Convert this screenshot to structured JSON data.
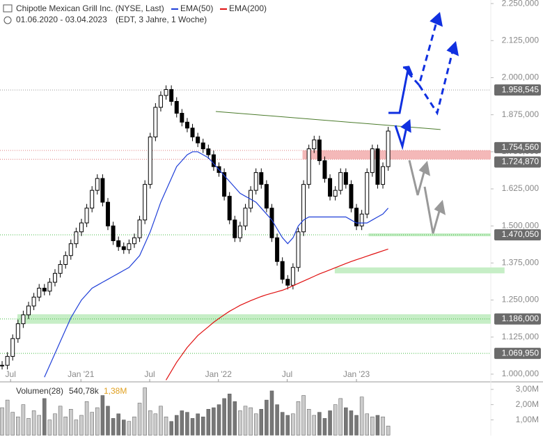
{
  "chart_data": {
    "type": "candlestick",
    "title": "Chipotle Mexican Grill Inc. (NYSE, Last)",
    "subtitle": "01.06.2020 - 03.04.2023",
    "subtitle_note": "(EDT, 3 Jahre, 1 Woche)",
    "xlim": [
      -0.4,
      92.4
    ],
    "ylim": [
      974,
      2262
    ],
    "xticks": [
      {
        "value": 1.6,
        "label": "Jul"
      },
      {
        "value": 14.9,
        "label": "Jan '21"
      },
      {
        "value": 27.9,
        "label": "Jul"
      },
      {
        "value": 40.9,
        "label": "Jan '22"
      },
      {
        "value": 53.9,
        "label": "Jul"
      },
      {
        "value": 67,
        "label": "Jan '23"
      }
    ],
    "yticks": [
      {
        "value": 1000,
        "label": "1.000,000"
      },
      {
        "value": 1125,
        "label": "1.125,000"
      },
      {
        "value": 1250,
        "label": "1.250,000"
      },
      {
        "value": 1375,
        "label": "1.375,000"
      },
      {
        "value": 1500,
        "label": "1.500,000"
      },
      {
        "value": 1625,
        "label": "1.625,000"
      },
      {
        "value": 1750,
        "label": "1.750,000"
      },
      {
        "value": 1875,
        "label": "1.875,000"
      },
      {
        "value": 2000,
        "label": "2.000,000"
      },
      {
        "value": 2125,
        "label": "2.125,000"
      },
      {
        "value": 2250,
        "label": "2.250,000"
      }
    ],
    "values": [
      1030,
      1060,
      1120,
      1170,
      1200,
      1230,
      1260,
      1290,
      1280,
      1310,
      1340,
      1370,
      1400,
      1440,
      1480,
      1510,
      1560,
      1620,
      1660,
      1580,
      1500,
      1450,
      1430,
      1420,
      1440,
      1460,
      1520,
      1640,
      1800,
      1900,
      1940,
      1960,
      1920,
      1880,
      1850,
      1830,
      1800,
      1780,
      1760,
      1740,
      1700,
      1680,
      1600,
      1520,
      1460,
      1500,
      1560,
      1620,
      1680,
      1640,
      1560,
      1460,
      1380,
      1320,
      1300,
      1360,
      1480,
      1640,
      1760,
      1790,
      1720,
      1660,
      1600,
      1620,
      1680,
      1640,
      1560,
      1500,
      1540,
      1680,
      1760,
      1640,
      1700,
      1820
    ],
    "series": [
      {
        "name": "EMA(50)",
        "color": "#1f3fd8",
        "values": [
          null,
          null,
          null,
          null,
          null,
          null,
          null,
          null,
          990,
          1030,
          1070,
          1110,
          1150,
          1190,
          1220,
          1250,
          1270,
          1290,
          1300,
          1310,
          1320,
          1330,
          1340,
          1350,
          1360,
          1380,
          1400,
          1440,
          1480,
          1530,
          1580,
          1620,
          1660,
          1700,
          1720,
          1740,
          1750,
          1750,
          1740,
          1730,
          1710,
          1690,
          1670,
          1650,
          1630,
          1610,
          1600,
          1590,
          1580,
          1560,
          1540,
          1520,
          1490,
          1460,
          1440,
          1460,
          1500,
          1520,
          1530,
          1530,
          1530,
          1530,
          1530,
          1530,
          1530,
          1530,
          1520,
          1510,
          1510,
          1510,
          1520,
          1530,
          1540,
          1560
        ]
      },
      {
        "name": "EMA(200)",
        "color": "#e01010",
        "values": [
          null,
          null,
          null,
          null,
          null,
          null,
          null,
          null,
          null,
          null,
          null,
          null,
          null,
          null,
          null,
          null,
          null,
          null,
          null,
          null,
          null,
          null,
          null,
          null,
          null,
          null,
          null,
          null,
          null,
          null,
          null,
          980,
          1010,
          1040,
          1065,
          1090,
          1110,
          1130,
          1145,
          1160,
          1175,
          1188,
          1200,
          1212,
          1222,
          1232,
          1240,
          1248,
          1255,
          1262,
          1268,
          1273,
          1278,
          1283,
          1290,
          1298,
          1306,
          1314,
          1322,
          1330,
          1338,
          1345,
          1352,
          1359,
          1366,
          1373,
          1380,
          1386,
          1392,
          1398,
          1404,
          1410,
          1416,
          1422
        ]
      }
    ],
    "levels": [
      {
        "value": 1958.545,
        "label": "1.958,545",
        "color": "#999999"
      },
      {
        "value": 1754.56,
        "label": "1.754,560",
        "color": "#e08080"
      },
      {
        "value": 1724.87,
        "label": "1.724,870",
        "color": "#e08080"
      },
      {
        "value": 1470.05,
        "label": "1.470,050",
        "color": "#44bb44"
      },
      {
        "value": 1186,
        "label": "1.186,000",
        "color": "#44bb44"
      },
      {
        "value": 1069.95,
        "label": "1.069,950",
        "color": "#44bb44"
      }
    ],
    "zones": [
      {
        "from": 1724.87,
        "to": 1754.56,
        "x": [
          56.8,
          92.4
        ],
        "color": "#f4b8b8"
      },
      {
        "from": 1465,
        "to": 1475,
        "x": [
          69.3,
          92.4
        ],
        "color": "#c6eec6"
      },
      {
        "from": 1340,
        "to": 1360,
        "x": [
          62.9,
          95
        ],
        "color": "#c6eec6"
      },
      {
        "from": 1170,
        "to": 1202,
        "x": [
          2.9,
          92.4
        ],
        "color": "#c6eec6"
      }
    ],
    "trendline": {
      "x": [
        40.4,
        82.9
      ],
      "y": [
        1886,
        1825
      ],
      "color": "#4a7a2a"
    },
    "volume": {
      "title": "Volumen(28)",
      "value_a": "540,78k",
      "value_b": "1,38M",
      "ylim": [
        0,
        3.49
      ],
      "yticks": [
        {
          "value": 1,
          "label": "1,00M"
        },
        {
          "value": 2,
          "label": "2,00M"
        },
        {
          "value": 3,
          "label": "3,00M"
        }
      ],
      "values": [
        1.8,
        2.3,
        1.5,
        1.2,
        2.0,
        1.1,
        1.6,
        1.3,
        2.4,
        1.0,
        1.4,
        1.9,
        1.2,
        1.7,
        1.0,
        1.3,
        2.2,
        1.5,
        1.8,
        2.6,
        1.9,
        1.1,
        1.4,
        1.0,
        0.9,
        1.2,
        2.1,
        3.1,
        1.6,
        1.4,
        1.9,
        1.2,
        0.9,
        1.3,
        1.6,
        1.5,
        1.1,
        1.4,
        1.2,
        1.7,
        1.8,
        2.0,
        2.4,
        2.7,
        2.2,
        1.6,
        1.9,
        1.8,
        1.4,
        1.7,
        2.3,
        2.9,
        2.0,
        1.5,
        1.3,
        1.4,
        2.2,
        2.6,
        1.7,
        1.3,
        1.5,
        1.1,
        1.6,
        2.0,
        2.4,
        1.8,
        1.6,
        1.3,
        2.5,
        1.4,
        1.2,
        1.3,
        1.2,
        0.6
      ]
    }
  }
}
